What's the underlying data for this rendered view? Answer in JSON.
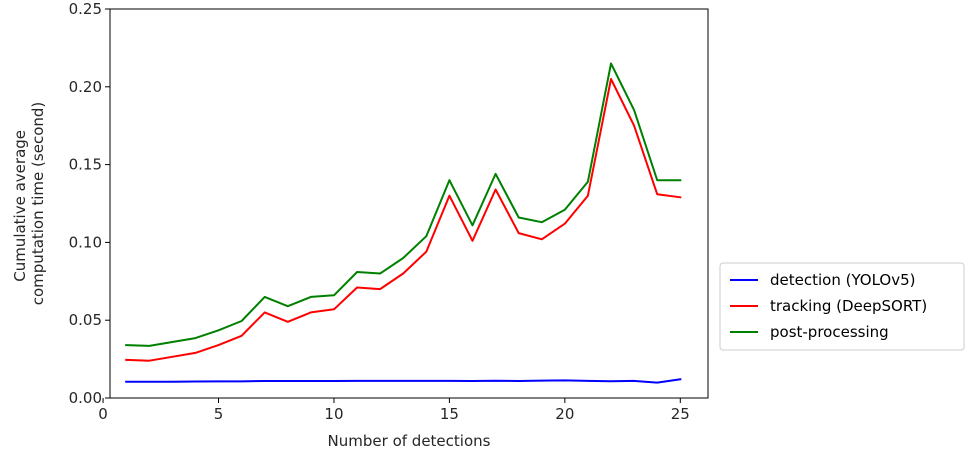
{
  "chart_data": {
    "type": "line",
    "title": "",
    "xlabel": "Number of detections",
    "ylabel_lines": [
      "Cumulative average",
      "computation time (second)"
    ],
    "xlim": [
      0.3,
      26.2
    ],
    "ylim": [
      0,
      0.25
    ],
    "xticks": [
      0,
      5,
      10,
      15,
      20,
      25
    ],
    "xtick_labels": [
      "0",
      "5",
      "10",
      "15",
      "20",
      "25"
    ],
    "yticks": [
      0,
      0.05,
      0.1,
      0.15,
      0.2,
      0.25
    ],
    "ytick_labels": [
      "0.00",
      "0.05",
      "0.10",
      "0.15",
      "0.20",
      "0.25"
    ],
    "grid": false,
    "legend_position": "outside-right",
    "x": [
      1,
      2,
      3,
      4,
      5,
      6,
      7,
      8,
      9,
      10,
      11,
      12,
      13,
      14,
      15,
      16,
      17,
      18,
      19,
      20,
      21,
      22,
      23,
      24,
      25
    ],
    "series": [
      {
        "name": "detection (YOLOv5)",
        "color": "#0000ff",
        "values": [
          0.0105,
          0.0105,
          0.0105,
          0.0106,
          0.0107,
          0.0107,
          0.0109,
          0.0109,
          0.0109,
          0.0109,
          0.011,
          0.011,
          0.011,
          0.011,
          0.011,
          0.0109,
          0.0111,
          0.0109,
          0.0112,
          0.0113,
          0.011,
          0.0108,
          0.011,
          0.0099,
          0.012
        ]
      },
      {
        "name": "tracking (DeepSORT)",
        "color": "#ff0000",
        "values": [
          0.0245,
          0.024,
          0.0265,
          0.029,
          0.034,
          0.04,
          0.055,
          0.049,
          0.055,
          0.057,
          0.071,
          0.07,
          0.08,
          0.094,
          0.13,
          0.101,
          0.134,
          0.106,
          0.102,
          0.112,
          0.13,
          0.205,
          0.175,
          0.131,
          0.129
        ]
      },
      {
        "name": "post-processing",
        "color": "#008000",
        "values": [
          0.034,
          0.0335,
          0.036,
          0.0385,
          0.0435,
          0.0495,
          0.065,
          0.059,
          0.065,
          0.066,
          0.081,
          0.08,
          0.09,
          0.104,
          0.14,
          0.111,
          0.144,
          0.116,
          0.113,
          0.121,
          0.139,
          0.215,
          0.185,
          0.14,
          0.14
        ]
      }
    ]
  }
}
